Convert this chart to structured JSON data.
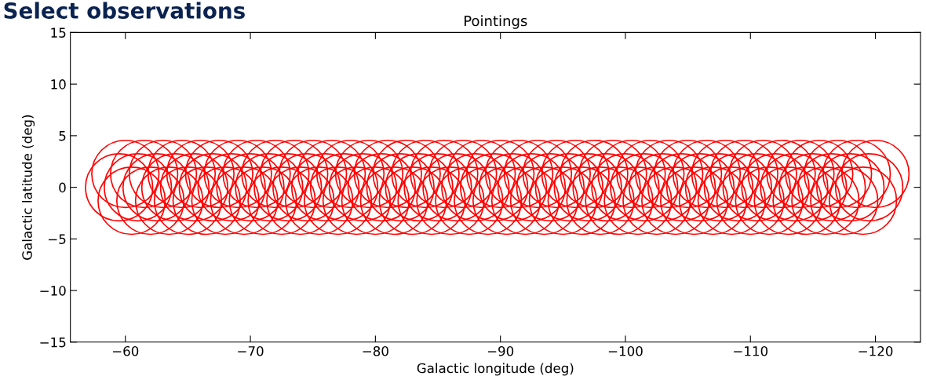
{
  "chart_data": {
    "type": "scatter",
    "title": "Pointings",
    "xlabel": "Galactic longitude (deg)",
    "ylabel": "Galactic latitude (deg)",
    "annotations": [
      "Select observations"
    ],
    "marker": "circle",
    "grid": false,
    "legend": false,
    "xlim": [
      -55.6,
      -123.6
    ],
    "ylim": [
      -15,
      15
    ],
    "xticks": [
      -60,
      -70,
      -80,
      -90,
      -100,
      -110,
      -120
    ],
    "yticks": [
      -15,
      -10,
      -5,
      0,
      5,
      10,
      15
    ],
    "series": [
      {
        "color": "#ff0000",
        "x": [
          -60,
          -61.5,
          -63,
          -64.5,
          -66,
          -67.5,
          -69,
          -70.5,
          -72,
          -73.5,
          -75,
          -76.5,
          -78,
          -79.5,
          -81,
          -82.5,
          -84,
          -85.5,
          -87,
          -88.5,
          -90,
          -91.5,
          -93,
          -94.5,
          -96,
          -97.5,
          -99,
          -100.5,
          -102,
          -103.5,
          -105,
          -106.5,
          -108,
          -109.5,
          -111,
          -112.5,
          -114,
          -115.5,
          -117,
          -118.5,
          -120
        ],
        "values": [
          1.3,
          1.3,
          1.3,
          1.3,
          1.3,
          1.3,
          1.3,
          1.3,
          1.3,
          1.3,
          1.3,
          1.3,
          1.3,
          1.3,
          1.3,
          1.3,
          1.3,
          1.3,
          1.3,
          1.3,
          1.3,
          1.3,
          1.3,
          1.3,
          1.3,
          1.3,
          1.3,
          1.3,
          1.3,
          1.3,
          1.3,
          1.3,
          1.3,
          1.3,
          1.3,
          1.3,
          1.3,
          1.3,
          1.3,
          1.3,
          1.3
        ]
      },
      {
        "color": "#ff0000",
        "x": [
          -59.5,
          -61,
          -62.5,
          -64,
          -65.5,
          -67,
          -68.5,
          -70,
          -71.5,
          -73,
          -74.5,
          -76,
          -77.5,
          -79,
          -80.5,
          -82,
          -83.5,
          -85,
          -86.5,
          -88,
          -89.5,
          -91,
          -92.5,
          -94,
          -95.5,
          -97,
          -98.5,
          -100,
          -101.5,
          -103,
          -104.5,
          -106,
          -107.5,
          -109,
          -110.5,
          -112,
          -113.5,
          -115,
          -116.5,
          -118,
          -119.5
        ],
        "values": [
          0,
          0,
          0,
          0,
          0,
          0,
          0,
          0,
          0,
          0,
          0,
          0,
          0,
          0,
          0,
          0,
          0,
          0,
          0,
          0,
          0,
          0,
          0,
          0,
          0,
          0,
          0,
          0,
          0,
          0,
          0,
          0,
          0,
          0,
          0,
          0,
          0,
          0,
          0,
          0,
          0
        ]
      },
      {
        "color": "#ff0000",
        "x": [
          -60.5,
          -62,
          -63.5,
          -65,
          -66.5,
          -68,
          -69.5,
          -71,
          -72.5,
          -74,
          -75.5,
          -77,
          -78.5,
          -80,
          -81.5,
          -83,
          -84.5,
          -86,
          -87.5,
          -89,
          -90.5,
          -92,
          -93.5,
          -95,
          -96.5,
          -98,
          -99.5,
          -101,
          -102.5,
          -104,
          -105.5,
          -107,
          -108.5,
          -110,
          -111.5,
          -113,
          -114.5,
          -116,
          -117.5,
          -119
        ],
        "values": [
          -1.3,
          -1.3,
          -1.3,
          -1.3,
          -1.3,
          -1.3,
          -1.3,
          -1.3,
          -1.3,
          -1.3,
          -1.3,
          -1.3,
          -1.3,
          -1.3,
          -1.3,
          -1.3,
          -1.3,
          -1.3,
          -1.3,
          -1.3,
          -1.3,
          -1.3,
          -1.3,
          -1.3,
          -1.3,
          -1.3,
          -1.3,
          -1.3,
          -1.3,
          -1.3,
          -1.3,
          -1.3,
          -1.3,
          -1.3,
          -1.3,
          -1.3,
          -1.3,
          -1.3,
          -1.3,
          -1.3
        ]
      }
    ]
  }
}
